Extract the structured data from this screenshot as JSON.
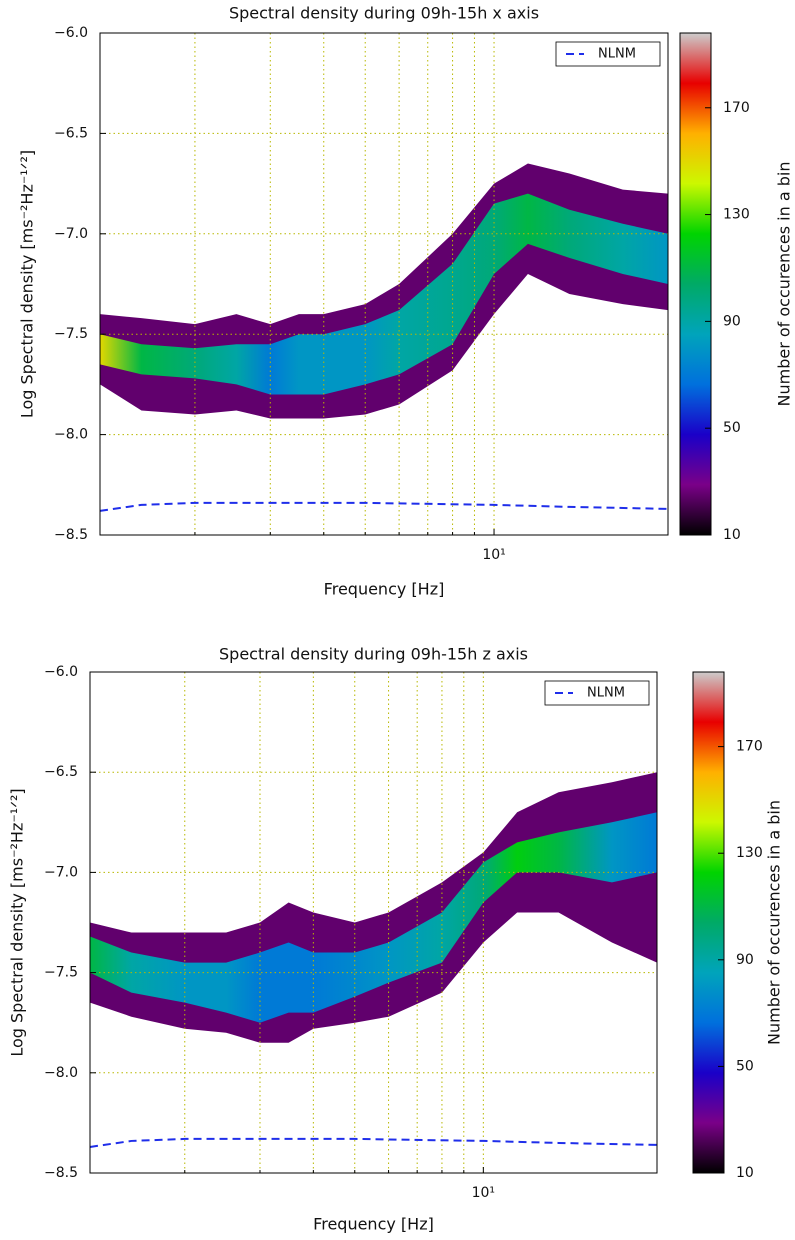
{
  "chart_data": [
    {
      "type": "heatmap",
      "title": "Spectral density during 09h-15h x axis",
      "xlabel": "Frequency [Hz]",
      "ylabel": "Log Spectral density [ms⁻²Hz⁻¹ᐟ²]",
      "colorbar_label": "Number of occurences in a bin",
      "xscale": "log",
      "xlim": [
        1.2,
        25.5
      ],
      "xticks": [
        {
          "value": 10,
          "label": "10¹"
        }
      ],
      "xminor": [
        2,
        3,
        4,
        5,
        6,
        7,
        8,
        9
      ],
      "ylim": [
        -8.5,
        -6.0
      ],
      "yticks": [
        {
          "value": -8.5,
          "label": "−8.5"
        },
        {
          "value": -8.0,
          "label": "−8.0"
        },
        {
          "value": -7.5,
          "label": "−7.5"
        },
        {
          "value": -7.0,
          "label": "−7.0"
        },
        {
          "value": -6.5,
          "label": "−6.5"
        },
        {
          "value": -6.0,
          "label": "−6.0"
        }
      ],
      "grid": true,
      "clim": [
        10,
        198
      ],
      "cticks": [
        10,
        50,
        90,
        130,
        170
      ],
      "colormap": [
        "#000000",
        "#7a0088",
        "#1a00c8",
        "#0070dd",
        "#00a4bb",
        "#00aa66",
        "#00d400",
        "#ccf800",
        "#ffb000",
        "#e80000",
        "#cccccc"
      ],
      "density": {
        "x": [
          1.2,
          1.5,
          2,
          2.5,
          3,
          3.5,
          4,
          5,
          6,
          8,
          10,
          12,
          15,
          20,
          25.5
        ],
        "high": [
          -7.4,
          -7.42,
          -7.45,
          -7.4,
          -7.45,
          -7.4,
          -7.4,
          -7.35,
          -7.25,
          -7.0,
          -6.75,
          -6.65,
          -6.7,
          -6.78,
          -6.8
        ],
        "low": [
          -7.75,
          -7.88,
          -7.9,
          -7.88,
          -7.92,
          -7.92,
          -7.92,
          -7.9,
          -7.85,
          -7.68,
          -7.4,
          -7.2,
          -7.3,
          -7.35,
          -7.38
        ],
        "outer_count": 25,
        "core_high": [
          -7.5,
          -7.55,
          -7.57,
          -7.55,
          -7.55,
          -7.5,
          -7.5,
          -7.45,
          -7.38,
          -7.15,
          -6.85,
          -6.8,
          -6.88,
          -6.95,
          -7.0
        ],
        "core_low": [
          -7.65,
          -7.7,
          -7.72,
          -7.75,
          -7.8,
          -7.8,
          -7.8,
          -7.75,
          -7.7,
          -7.55,
          -7.2,
          -7.05,
          -7.12,
          -7.2,
          -7.25
        ],
        "core_count": [
          150,
          110,
          100,
          90,
          70,
          80,
          80,
          80,
          90,
          95,
          100,
          110,
          100,
          90,
          80
        ]
      },
      "series": [
        {
          "name": "NLNM",
          "color": "#1f2eea",
          "dashed": true,
          "x": [
            1.2,
            1.5,
            2,
            3,
            5,
            10,
            15,
            25.5
          ],
          "values": [
            -8.38,
            -8.35,
            -8.34,
            -8.34,
            -8.34,
            -8.35,
            -8.36,
            -8.37
          ]
        }
      ],
      "legend": "upper right"
    },
    {
      "type": "heatmap",
      "title": "Spectral density during 09h-15h z axis",
      "xlabel": "Frequency [Hz]",
      "ylabel": "Log Spectral density [ms⁻²Hz⁻¹ᐟ²]",
      "colorbar_label": "Number of occurences in a bin",
      "xscale": "log",
      "xlim": [
        1.2,
        25.5
      ],
      "xticks": [
        {
          "value": 10,
          "label": "10¹"
        }
      ],
      "xminor": [
        2,
        3,
        4,
        5,
        6,
        7,
        8,
        9
      ],
      "ylim": [
        -8.5,
        -6.0
      ],
      "yticks": [
        {
          "value": -8.5,
          "label": "−8.5"
        },
        {
          "value": -8.0,
          "label": "−8.0"
        },
        {
          "value": -7.5,
          "label": "−7.5"
        },
        {
          "value": -7.0,
          "label": "−7.0"
        },
        {
          "value": -6.5,
          "label": "−6.5"
        },
        {
          "value": -6.0,
          "label": "−6.0"
        }
      ],
      "grid": true,
      "clim": [
        10,
        198
      ],
      "cticks": [
        10,
        50,
        90,
        130,
        170
      ],
      "colormap": [
        "#000000",
        "#7a0088",
        "#1a00c8",
        "#0070dd",
        "#00a4bb",
        "#00aa66",
        "#00d400",
        "#ccf800",
        "#ffb000",
        "#e80000",
        "#cccccc"
      ],
      "density": {
        "x": [
          1.2,
          1.5,
          2,
          2.5,
          3,
          3.5,
          4,
          5,
          6,
          8,
          10,
          12,
          15,
          20,
          25.5
        ],
        "high": [
          -7.25,
          -7.3,
          -7.3,
          -7.3,
          -7.25,
          -7.15,
          -7.2,
          -7.25,
          -7.2,
          -7.05,
          -6.9,
          -6.7,
          -6.6,
          -6.55,
          -6.5
        ],
        "low": [
          -7.65,
          -7.72,
          -7.78,
          -7.8,
          -7.85,
          -7.85,
          -7.78,
          -7.75,
          -7.72,
          -7.6,
          -7.35,
          -7.2,
          -7.2,
          -7.35,
          -7.45
        ],
        "outer_count": 25,
        "core_high": [
          -7.32,
          -7.4,
          -7.45,
          -7.45,
          -7.4,
          -7.35,
          -7.4,
          -7.4,
          -7.35,
          -7.2,
          -6.95,
          -6.85,
          -6.8,
          -6.75,
          -6.7
        ],
        "core_low": [
          -7.5,
          -7.6,
          -7.65,
          -7.7,
          -7.75,
          -7.7,
          -7.7,
          -7.62,
          -7.55,
          -7.45,
          -7.15,
          -7.0,
          -7.0,
          -7.05,
          -7.0
        ],
        "core_count": [
          110,
          90,
          80,
          80,
          70,
          70,
          70,
          75,
          80,
          90,
          100,
          120,
          110,
          80,
          70
        ]
      },
      "series": [
        {
          "name": "NLNM",
          "color": "#1f2eea",
          "dashed": true,
          "x": [
            1.2,
            1.5,
            2,
            3,
            5,
            10,
            15,
            25.5
          ],
          "values": [
            -8.37,
            -8.34,
            -8.33,
            -8.33,
            -8.33,
            -8.34,
            -8.35,
            -8.36
          ]
        }
      ],
      "legend": "upper right"
    }
  ]
}
